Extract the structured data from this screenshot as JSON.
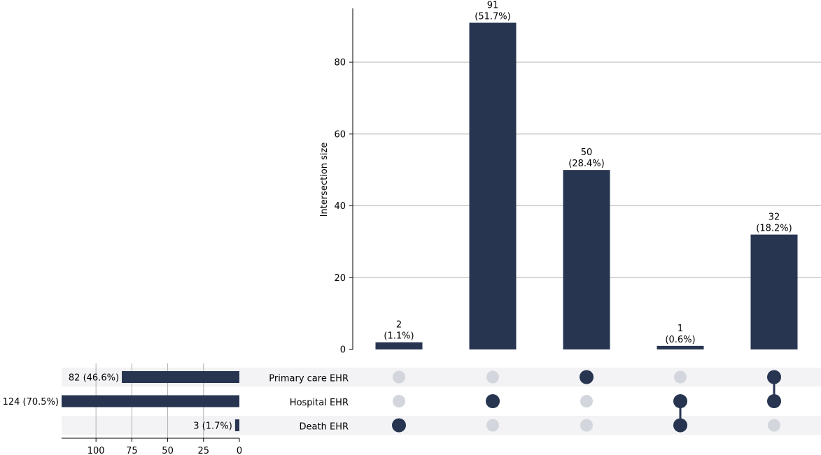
{
  "chart_data": [
    {
      "type": "bar",
      "ylabel": "Intersection size",
      "ylim": [
        0,
        95
      ],
      "yticks": [
        0,
        20,
        40,
        60,
        80
      ],
      "grid": true,
      "values": [
        2,
        91,
        50,
        1,
        32
      ],
      "labels": [
        [
          "2",
          "(1.1%)"
        ],
        [
          "91",
          "(51.7%)"
        ],
        [
          "50",
          "(28.4%)"
        ],
        [
          "1",
          "(0.6%)"
        ],
        [
          "32",
          "(18.2%)"
        ]
      ]
    },
    {
      "type": "bar",
      "orientation": "horizontal",
      "categories": [
        "Primary care EHR",
        "Hospital EHR",
        "Death EHR"
      ],
      "values": [
        82,
        124,
        3
      ],
      "labels": [
        "82 (46.6%)",
        "124 (70.5%)",
        "3 (1.7%)"
      ],
      "xticks": [
        "100",
        "75",
        "50",
        "25",
        "0"
      ],
      "xlim": [
        124,
        0
      ],
      "grid": true
    }
  ],
  "matrix": {
    "sets": [
      "Primary care EHR",
      "Hospital EHR",
      "Death EHR"
    ],
    "membership": [
      [
        false,
        false,
        true
      ],
      [
        false,
        true,
        false
      ],
      [
        true,
        false,
        false
      ],
      [
        false,
        true,
        true
      ],
      [
        true,
        true,
        false
      ]
    ]
  },
  "colors": {
    "bar": "#273551",
    "dot_active": "#273551",
    "dot_inactive": "#d4d6dd",
    "row_shade": "#f3f3f5",
    "grid": "#b0b0b0"
  }
}
